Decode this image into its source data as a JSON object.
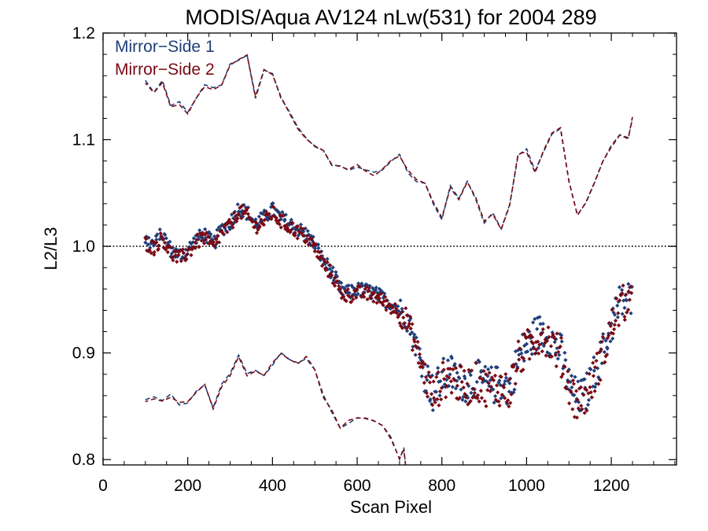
{
  "colors": {
    "mirror_side_1": "#1f3f7a",
    "mirror_side_2": "#7a0a14",
    "axes": "#000000"
  },
  "chart_data": {
    "type": "scatter",
    "title": "MODIS/Aqua AV124 nLw(531) for 2004 289",
    "xlabel": "Scan Pixel",
    "ylabel": "L2/L3",
    "xlim": [
      0,
      1354
    ],
    "ylim": [
      0.795,
      1.2
    ],
    "x_ticks": [
      0,
      200,
      400,
      600,
      800,
      1000,
      1200
    ],
    "x_tick_labels": [
      "0",
      "200",
      "400",
      "600",
      "800",
      "1000",
      "1200"
    ],
    "y_ticks": [
      0.8,
      0.9,
      1.0,
      1.1,
      1.2
    ],
    "y_tick_labels": [
      "0.8",
      "0.9",
      "1.0",
      "1.1",
      "1.2"
    ],
    "reference_line": {
      "y": 1.0,
      "style": "dotted"
    },
    "legend": {
      "placement": "top-left"
    },
    "series": [
      {
        "name": "Mirror−Side 1",
        "color": "#1f3f7a"
      },
      {
        "name": "Mirror−Side 2",
        "color": "#7a0a14"
      }
    ],
    "mean_points": {
      "x": [
        100,
        120,
        140,
        160,
        180,
        200,
        220,
        240,
        260,
        280,
        300,
        320,
        340,
        360,
        380,
        400,
        420,
        440,
        460,
        480,
        500,
        520,
        540,
        560,
        580,
        600,
        620,
        640,
        660,
        680,
        700,
        720,
        740,
        760,
        780,
        800,
        820,
        840,
        860,
        880,
        900,
        920,
        940,
        960,
        980,
        1000,
        1020,
        1040,
        1060,
        1080,
        1100,
        1120,
        1140,
        1160,
        1180,
        1200,
        1220,
        1240,
        1250
      ],
      "y": [
        1.005,
        1.0,
        1.01,
        0.995,
        0.99,
        0.995,
        1.005,
        1.01,
        1.0,
        1.015,
        1.02,
        1.035,
        1.03,
        1.02,
        1.025,
        1.033,
        1.025,
        1.02,
        1.015,
        1.01,
        1.0,
        0.985,
        0.975,
        0.958,
        0.955,
        0.958,
        0.957,
        0.955,
        0.95,
        0.945,
        0.94,
        0.93,
        0.905,
        0.88,
        0.86,
        0.875,
        0.88,
        0.872,
        0.87,
        0.875,
        0.87,
        0.868,
        0.87,
        0.865,
        0.895,
        0.905,
        0.915,
        0.92,
        0.91,
        0.9,
        0.87,
        0.855,
        0.86,
        0.88,
        0.9,
        0.925,
        0.945,
        0.95,
        0.945
      ]
    },
    "upper_envelope": {
      "x": [
        100,
        120,
        140,
        160,
        180,
        200,
        220,
        240,
        260,
        280,
        300,
        320,
        340,
        360,
        380,
        400,
        420,
        440,
        460,
        480,
        500,
        520,
        540,
        560,
        580,
        600,
        620,
        640,
        660,
        680,
        700,
        720,
        740,
        760,
        780,
        800,
        820,
        840,
        860,
        880,
        900,
        920,
        940,
        960,
        980,
        1000,
        1020,
        1040,
        1060,
        1080,
        1100,
        1120,
        1140,
        1160,
        1180,
        1200,
        1220,
        1240,
        1250
      ],
      "y": [
        1.155,
        1.145,
        1.155,
        1.13,
        1.135,
        1.125,
        1.14,
        1.15,
        1.148,
        1.15,
        1.17,
        1.175,
        1.178,
        1.14,
        1.165,
        1.163,
        1.14,
        1.125,
        1.11,
        1.1,
        1.095,
        1.09,
        1.075,
        1.076,
        1.072,
        1.075,
        1.07,
        1.068,
        1.072,
        1.08,
        1.085,
        1.07,
        1.062,
        1.06,
        1.04,
        1.025,
        1.055,
        1.045,
        1.06,
        1.045,
        1.022,
        1.03,
        1.015,
        1.04,
        1.085,
        1.09,
        1.07,
        1.09,
        1.105,
        1.112,
        1.06,
        1.03,
        1.04,
        1.06,
        1.08,
        1.095,
        1.105,
        1.1,
        1.12
      ]
    },
    "lower_envelope": {
      "x": [
        100,
        120,
        140,
        160,
        180,
        200,
        220,
        240,
        260,
        280,
        300,
        320,
        340,
        360,
        380,
        400,
        420,
        440,
        460,
        480,
        500,
        520,
        540,
        560,
        580,
        600,
        620,
        640,
        660,
        680,
        700,
        710,
        715
      ],
      "y": [
        0.855,
        0.857,
        0.855,
        0.86,
        0.852,
        0.855,
        0.865,
        0.87,
        0.848,
        0.87,
        0.88,
        0.898,
        0.88,
        0.882,
        0.878,
        0.89,
        0.9,
        0.895,
        0.89,
        0.895,
        0.885,
        0.86,
        0.845,
        0.83,
        0.835,
        0.84,
        0.84,
        0.836,
        0.83,
        0.82,
        0.8,
        0.81,
        0.79
      ]
    }
  }
}
